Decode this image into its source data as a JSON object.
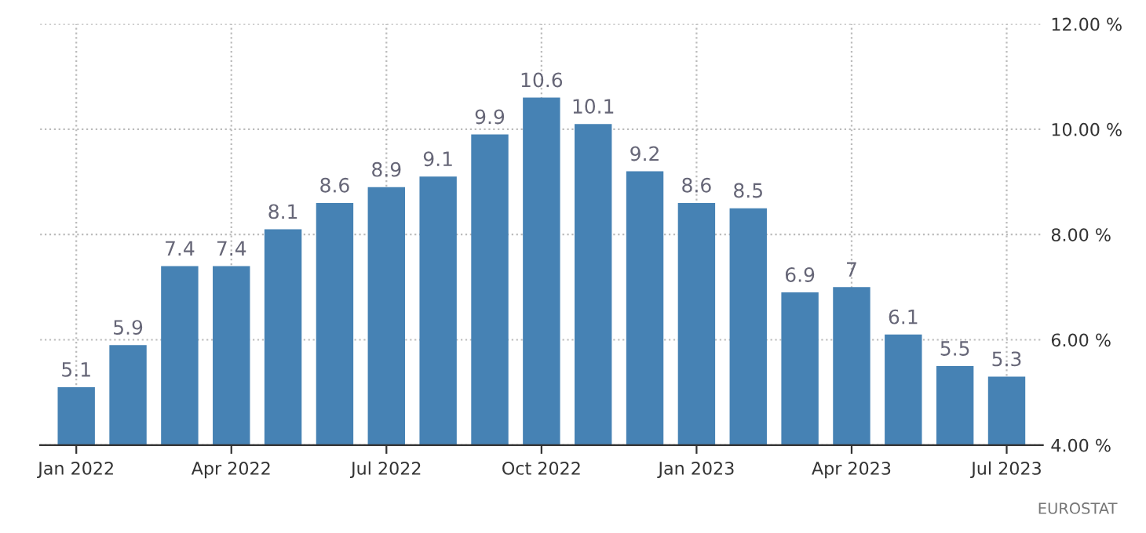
{
  "chart_data": {
    "type": "bar",
    "categories": [
      "Jan 2022",
      null,
      null,
      "Apr 2022",
      null,
      null,
      "Jul 2022",
      null,
      null,
      "Oct 2022",
      null,
      null,
      "Jan 2023",
      null,
      null,
      "Apr 2023",
      null,
      null,
      "Jul 2023"
    ],
    "values": [
      5.1,
      5.9,
      7.4,
      7.4,
      8.1,
      8.6,
      8.9,
      9.1,
      9.9,
      10.6,
      10.1,
      9.2,
      8.6,
      8.5,
      6.9,
      7,
      6.1,
      5.5,
      5.3
    ],
    "color": "#4682b4",
    "ylim": [
      4,
      12
    ],
    "yticks": [
      {
        "value": 4,
        "label": "4.00 %"
      },
      {
        "value": 6,
        "label": "6.00 %"
      },
      {
        "value": 8,
        "label": "8.00 %"
      },
      {
        "value": 10,
        "label": "10.00 %"
      },
      {
        "value": 12,
        "label": "12.00 %"
      }
    ],
    "grid": true,
    "data_labels": true,
    "annotations": [
      "EUROSTAT"
    ]
  }
}
